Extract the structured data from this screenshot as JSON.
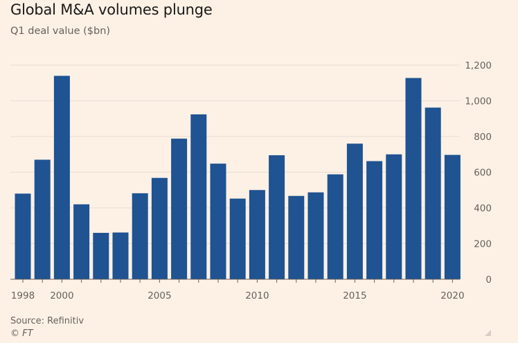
{
  "chart_data": {
    "type": "bar",
    "title": "Global M&A volumes plunge",
    "subtitle": "Q1 deal value ($bn)",
    "xlabel": "",
    "ylabel": "Q1 deal value ($bn)",
    "categories": [
      "1998",
      "1999",
      "2000",
      "2001",
      "2002",
      "2003",
      "2004",
      "2005",
      "2006",
      "2007",
      "2008",
      "2009",
      "2010",
      "2011",
      "2012",
      "2013",
      "2014",
      "2015",
      "2016",
      "2017",
      "2018",
      "2019",
      "2020"
    ],
    "values": [
      480,
      670,
      1140,
      420,
      260,
      262,
      482,
      568,
      788,
      924,
      648,
      452,
      500,
      695,
      467,
      487,
      588,
      760,
      662,
      700,
      1128,
      962,
      697
    ],
    "x_tick_labels": [
      "1998",
      "2000",
      "2005",
      "2010",
      "2015",
      "2020"
    ],
    "y_tick_labels": [
      "0",
      "200",
      "400",
      "600",
      "800",
      "1,000",
      "1,200"
    ],
    "y_ticks": [
      0,
      200,
      400,
      600,
      800,
      1000,
      1200
    ],
    "ylim": [
      0,
      1200
    ],
    "grid": true,
    "y_axis_side": "right",
    "bar_color": "#1f5391",
    "grid_color": "#e8ddd3",
    "axis_color": "#66605c"
  },
  "source": "Source: Refinitiv",
  "credit": "© FT",
  "corner_icon": "resize-corner-icon"
}
